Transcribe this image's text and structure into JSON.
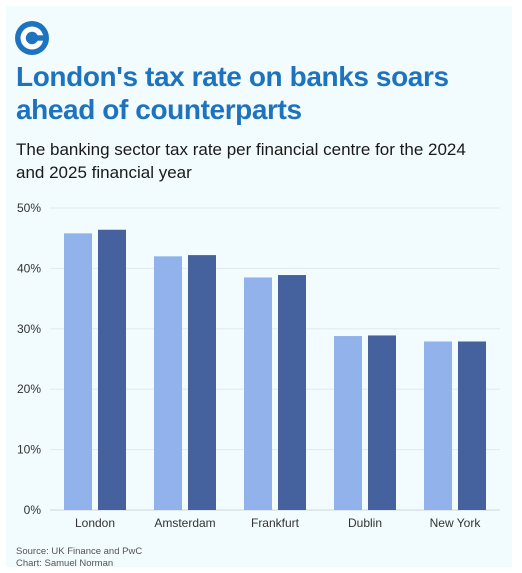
{
  "title": "London's tax rate on banks soars ahead of counterparts",
  "subtitle": "The banking sector tax rate per financial centre for the 2024 and 2025 financial year",
  "source": "Source: UK Finance and PwC",
  "credit": "Chart: Samuel Norman",
  "logo_icon": "brand-c-logo-icon",
  "colors": {
    "brand": "#1e73be",
    "series_2024": "#91b2ea",
    "series_2025": "#45629e"
  },
  "chart_data": {
    "type": "bar",
    "categories": [
      "London",
      "Amsterdam",
      "Frankfurt",
      "Dublin",
      "New York"
    ],
    "series": [
      {
        "values": [
          45.8,
          42.0,
          38.5,
          28.8,
          27.9
        ]
      },
      {
        "values": [
          46.4,
          42.2,
          38.9,
          28.9,
          27.9
        ]
      }
    ],
    "ylim": [
      0,
      50
    ],
    "yticks": [
      "0%",
      "10%",
      "20%",
      "30%",
      "40%",
      "50%"
    ],
    "grid": true,
    "xlabel": "",
    "ylabel": ""
  }
}
